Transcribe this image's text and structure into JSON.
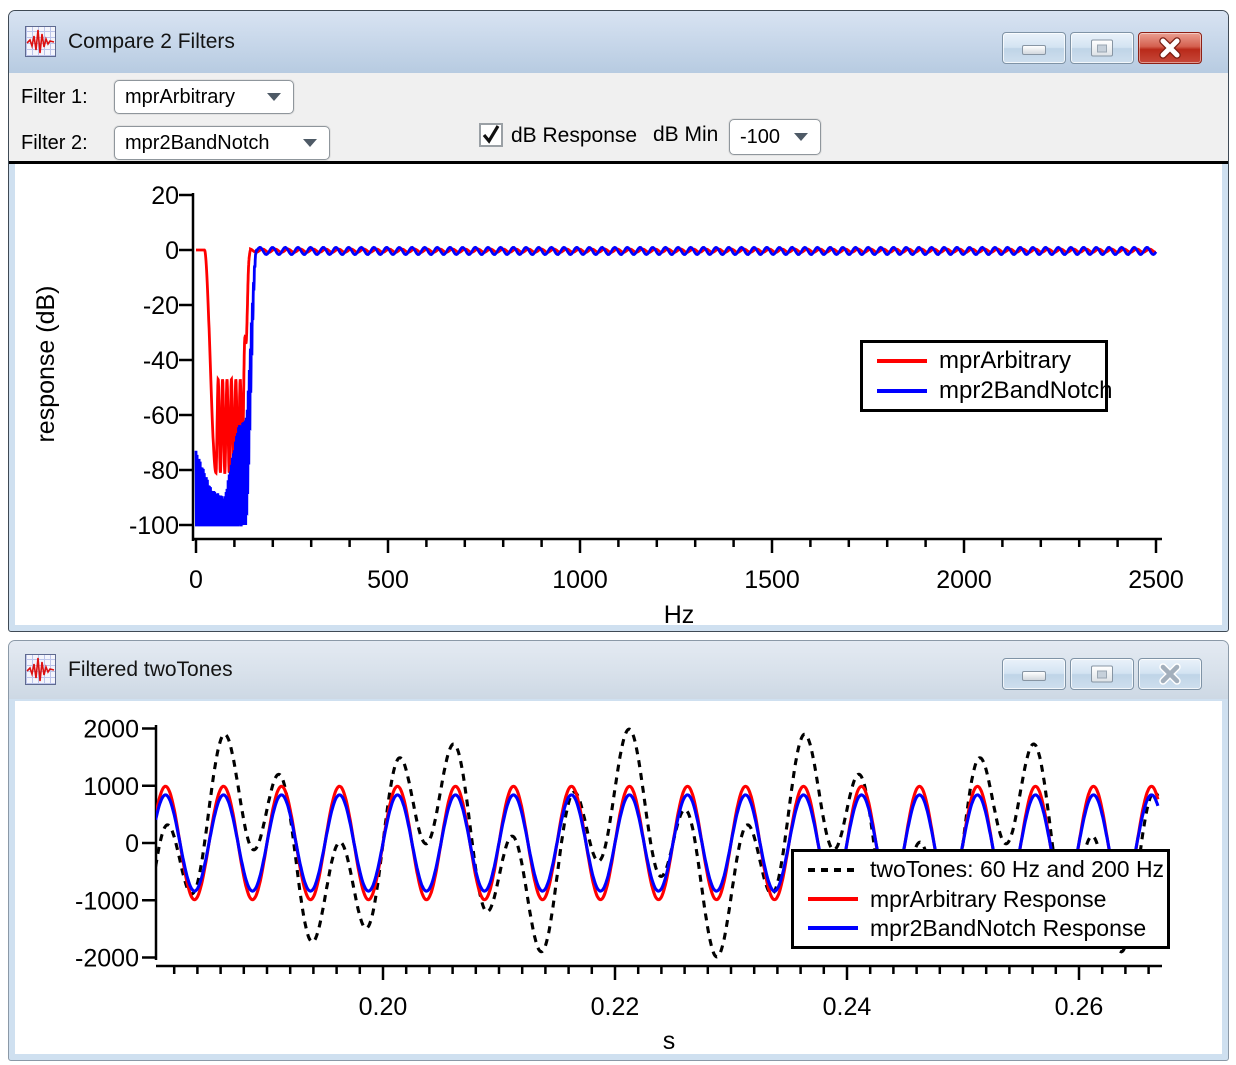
{
  "window1": {
    "title": "Compare 2 Filters",
    "controls": {
      "filter1_label": "Filter 1:",
      "filter1_value": "mprArbitrary",
      "filter2_label": "Filter 2:",
      "filter2_value": "mpr2BandNotch",
      "db_response_label": "dB Response",
      "db_response_checked": true,
      "db_min_label": "dB Min",
      "db_min_value": "-100"
    }
  },
  "window2": {
    "title": "Filtered twoTones"
  },
  "icons": {
    "app": "waveform-icon",
    "minimize": "minimize-icon",
    "maximize": "maximize-icon",
    "close": "close-icon",
    "dropdown": "chevron-down-icon",
    "checkbox": "check-icon"
  },
  "colors": {
    "titlebar_active_top": "#d8e3f2",
    "titlebar_active_bottom": "#b7cbe1",
    "titlebar_inactive_top": "#e4eaf2",
    "titlebar_inactive_bottom": "#cdd8e4",
    "close_button_red": "#b92a1a",
    "control_strip": "#f0f0f0",
    "window_frame": "#cfe0f0",
    "series_red": "#ff0000",
    "series_blue": "#0000ff",
    "series_black": "#000000"
  },
  "chart_data": [
    {
      "id": "response-chart",
      "type": "line",
      "title": "",
      "xlabel": "Hz",
      "ylabel": "response (dB)",
      "xlim": [
        0,
        2500
      ],
      "ylim": [
        -100,
        20
      ],
      "grid": false,
      "legend_position": "right-center",
      "x_major_ticks": [
        0,
        500,
        1000,
        1500,
        2000,
        2500
      ],
      "x_major_labels": [
        "0",
        "500",
        "1000",
        "1500",
        "2000",
        "2500"
      ],
      "x_minor_step": 100,
      "y_major_ticks": [
        20,
        0,
        -20,
        -40,
        -60,
        -80,
        -100
      ],
      "y_major_labels": [
        "20",
        "0",
        "-20",
        "-40",
        "-60",
        "-80",
        "-100"
      ],
      "series": [
        {
          "name": "mprArbitrary",
          "color": "#ff0000",
          "style": "solid",
          "description": "band-stop ~25-140 Hz, 0 dB passband elsewhere, stopband floor ~-47 to -81 dB",
          "segments": [
            {
              "kind": "flat",
              "f0": 0,
              "f1": 22,
              "db": 0,
              "step": 4
            },
            {
              "kind": "smoothdrop",
              "f0": 22,
              "f1": 52,
              "db0": 0,
              "db1": -81,
              "step": 0.8
            },
            {
              "kind": "osc",
              "f0": 52,
              "f1": 118,
              "f_ref": 52,
              "center": -64,
              "amp": 17,
              "period": 11.5,
              "step": 0.4
            },
            {
              "kind": "fadeup",
              "f0": 118,
              "f1": 142,
              "f_ref": 52,
              "center": -64,
              "amp": 17,
              "period": 11.5,
              "step": 0.4
            },
            {
              "kind": "ripple",
              "f0": 142,
              "f1": 2500,
              "center": -0.25,
              "amp": 0.6,
              "period": 33,
              "phase": 0,
              "step": 2.5
            }
          ]
        },
        {
          "name": "mpr2BandNotch",
          "color": "#0000ff",
          "style": "solid",
          "description": "stopband 0-150 Hz with comb nulls to -100 dB, 0 dB passband above ~160 Hz",
          "segments": [
            {
              "kind": "comb",
              "f0": 0,
              "f1": 128,
              "env": [
                [
                  0,
                  -73
                ],
                [
                  40,
                  -87
                ],
                [
                  75,
                  -90
                ],
                [
                  110,
                  -64
                ],
                [
                  128,
                  -62
                ]
              ],
              "depth": 40,
              "period": 2.7,
              "clip": -100,
              "step": 0.35
            },
            {
              "kind": "combrise",
              "f0": 128,
              "f1": 158,
              "db_start": -62,
              "depth": 40,
              "period": 2.7,
              "clip": -100,
              "step": 0.35
            },
            {
              "kind": "ripple",
              "f0": 158,
              "f1": 2500,
              "center": -0.35,
              "amp": 1.3,
              "period": 33,
              "phase": 1.3,
              "step": 2.5
            }
          ]
        }
      ]
    },
    {
      "id": "time-chart",
      "type": "line",
      "title": "",
      "xlabel": "s",
      "ylabel": "",
      "xlim": [
        0.1804,
        0.2668
      ],
      "ylim": [
        -2000,
        2000
      ],
      "grid": false,
      "legend_position": "right-center",
      "x_major_ticks": [
        0.2,
        0.22,
        0.24,
        0.26
      ],
      "x_major_labels": [
        "0.20",
        "0.22",
        "0.24",
        "0.26"
      ],
      "x_minor_step": 0.002,
      "y_major_ticks": [
        2000,
        1000,
        0,
        -1000,
        -2000
      ],
      "y_major_labels": [
        "2000",
        "1000",
        "0",
        "-1000",
        "-2000"
      ],
      "series": [
        {
          "name": "twoTones: 60 Hz and 200 Hz",
          "color": "#000000",
          "style": "dashed",
          "components": [
            {
              "freq": 60,
              "amp": 1000
            },
            {
              "freq": 200,
              "amp": 1000
            }
          ]
        },
        {
          "name": "mprArbitrary Response",
          "color": "#ff0000",
          "style": "solid",
          "components": [
            {
              "freq": 200,
              "amp": 990
            }
          ]
        },
        {
          "name": "mpr2BandNotch Response",
          "color": "#0000ff",
          "style": "solid",
          "components": [
            {
              "freq": 200,
              "amp": 840
            }
          ]
        }
      ]
    }
  ]
}
